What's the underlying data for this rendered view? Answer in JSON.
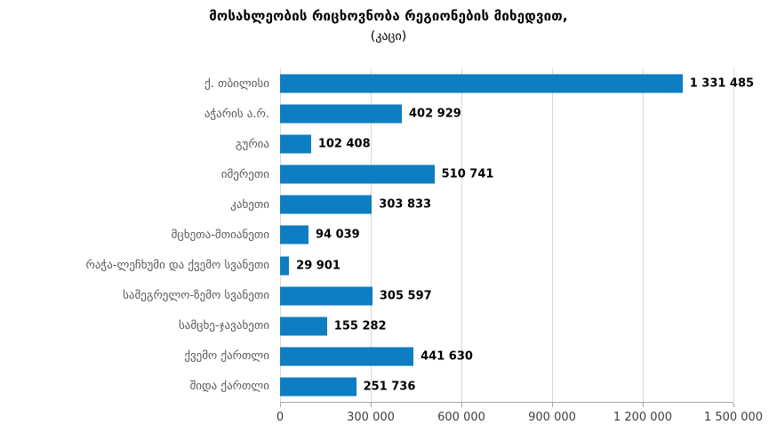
{
  "chart_data": {
    "type": "bar",
    "orientation": "horizontal",
    "title": "მოსახლეობის რიცხოვნობა რეგიონების მიხედვით,",
    "subtitle": "(კაცი)",
    "categories": [
      "ქ. თბილისი",
      "აჭარის ა.რ.",
      "გურია",
      "იმერეთი",
      "კახეთი",
      "მცხეთა-მთიანეთი",
      "რაჭა-ლეჩხუმი და ქვემო სვანეთი",
      "სამეგრელო-ზემო სვანეთი",
      "სამცხე-ჯავახეთი",
      "ქვემო ქართლი",
      "შიდა ქართლი"
    ],
    "values": [
      1331485,
      402929,
      102408,
      510741,
      303833,
      94039,
      29901,
      305597,
      155282,
      441630,
      251736
    ],
    "value_labels": [
      "1 331 485",
      "402 929",
      "102 408",
      "510 741",
      "303 833",
      "94 039",
      "29 901",
      "305 597",
      "155 282",
      "441 630",
      "251 736"
    ],
    "xlabel": "",
    "ylabel": "",
    "xlim": [
      0,
      1500000
    ],
    "xticks": [
      "0",
      "300 000",
      "600 000",
      "900 000",
      "1 200 000",
      "1 500 000"
    ],
    "xtick_values": [
      0,
      300000,
      600000,
      900000,
      1200000,
      1500000
    ],
    "grid": true,
    "legend": false,
    "colors": {
      "bar": "#0e7dc1",
      "gridline": "#d9d9d9",
      "axis_line": "#a6a6a6",
      "category_label": "#595959",
      "value_label": "#000000",
      "tick_label": "#404040"
    }
  }
}
